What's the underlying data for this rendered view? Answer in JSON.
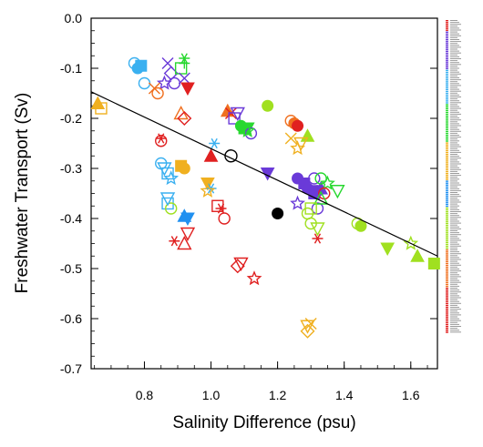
{
  "chart_data": {
    "type": "scatter",
    "xlabel": "Salinity Difference (psu)",
    "ylabel": "Freshwater Transport (Sv)",
    "xlim": [
      0.64,
      1.68
    ],
    "ylim": [
      -0.7,
      0.0
    ],
    "x_ticks": [
      "0.8",
      "1.0",
      "1.2",
      "1.4",
      "1.6"
    ],
    "y_ticks": [
      "0.0",
      "-0.1",
      "-0.2",
      "-0.3",
      "-0.4",
      "-0.5",
      "-0.6",
      "-0.7"
    ],
    "grid": false,
    "legend": "right, list of ensemble members (labels too small to read)",
    "regression_line": {
      "x": [
        0.64,
        1.68
      ],
      "y": [
        -0.147,
        -0.475
      ],
      "color": "#000000"
    },
    "highlight_points": [
      {
        "x": 1.06,
        "y": -0.275,
        "style": "open-circle"
      },
      {
        "x": 1.2,
        "y": -0.39,
        "style": "filled-circle"
      }
    ],
    "points": [
      {
        "x": 0.77,
        "y": -0.09,
        "color": "#3ab0f0",
        "marker": "circle"
      },
      {
        "x": 0.78,
        "y": -0.1,
        "color": "#3ab0f0",
        "marker": "circle-fill"
      },
      {
        "x": 0.79,
        "y": -0.095,
        "color": "#3ab0f0",
        "marker": "square-fill"
      },
      {
        "x": 0.8,
        "y": -0.13,
        "color": "#3ab0f0",
        "marker": "circle"
      },
      {
        "x": 0.87,
        "y": -0.09,
        "color": "#6a3ad8",
        "marker": "x"
      },
      {
        "x": 0.86,
        "y": -0.13,
        "color": "#6a3ad8",
        "marker": "star"
      },
      {
        "x": 0.88,
        "y": -0.11,
        "color": "#6a3ad8",
        "marker": "diamond"
      },
      {
        "x": 0.89,
        "y": -0.13,
        "color": "#6a3ad8",
        "marker": "circle"
      },
      {
        "x": 0.91,
        "y": -0.1,
        "color": "#28d830",
        "marker": "square"
      },
      {
        "x": 0.92,
        "y": -0.09,
        "color": "#28d830",
        "marker": "plus"
      },
      {
        "x": 0.92,
        "y": -0.08,
        "color": "#28d830",
        "marker": "asterisk"
      },
      {
        "x": 0.92,
        "y": -0.12,
        "color": "#6a3ad8",
        "marker": "x"
      },
      {
        "x": 0.93,
        "y": -0.14,
        "color": "#e02020",
        "marker": "triangle-down-fill"
      },
      {
        "x": 0.83,
        "y": -0.14,
        "color": "#f07020",
        "marker": "x"
      },
      {
        "x": 0.84,
        "y": -0.15,
        "color": "#f07020",
        "marker": "circle"
      },
      {
        "x": 0.66,
        "y": -0.17,
        "color": "#f0b020",
        "marker": "triangle-up-fill"
      },
      {
        "x": 0.67,
        "y": -0.18,
        "color": "#f0b020",
        "marker": "square"
      },
      {
        "x": 0.91,
        "y": -0.19,
        "color": "#f07020",
        "marker": "triangle-up"
      },
      {
        "x": 0.92,
        "y": -0.2,
        "color": "#e02020",
        "marker": "diamond"
      },
      {
        "x": 0.85,
        "y": -0.245,
        "color": "#e02020",
        "marker": "circle"
      },
      {
        "x": 0.85,
        "y": -0.24,
        "color": "#e02020",
        "marker": "asterisk"
      },
      {
        "x": 0.86,
        "y": -0.3,
        "color": "#3ab0f0",
        "marker": "triangle-down"
      },
      {
        "x": 0.85,
        "y": -0.29,
        "color": "#3ab0f0",
        "marker": "circle"
      },
      {
        "x": 0.87,
        "y": -0.31,
        "color": "#3ab0f0",
        "marker": "square"
      },
      {
        "x": 0.88,
        "y": -0.32,
        "color": "#3ab0f0",
        "marker": "star"
      },
      {
        "x": 0.91,
        "y": -0.295,
        "color": "#f0b020",
        "marker": "square-fill"
      },
      {
        "x": 0.92,
        "y": -0.3,
        "color": "#f0b020",
        "marker": "circle-fill"
      },
      {
        "x": 0.87,
        "y": -0.37,
        "color": "#3ab0f0",
        "marker": "square"
      },
      {
        "x": 0.88,
        "y": -0.38,
        "color": "#a0e020",
        "marker": "circle"
      },
      {
        "x": 0.87,
        "y": -0.36,
        "color": "#3ab0f0",
        "marker": "triangle-down"
      },
      {
        "x": 0.93,
        "y": -0.4,
        "color": "#2090f0",
        "marker": "triangle-down-fill"
      },
      {
        "x": 0.92,
        "y": -0.395,
        "color": "#2090f0",
        "marker": "triangle-up-fill"
      },
      {
        "x": 0.89,
        "y": -0.445,
        "color": "#e02020",
        "marker": "asterisk"
      },
      {
        "x": 0.92,
        "y": -0.45,
        "color": "#e02020",
        "marker": "triangle-up"
      },
      {
        "x": 0.93,
        "y": -0.43,
        "color": "#e02020",
        "marker": "triangle-down"
      },
      {
        "x": 0.99,
        "y": -0.33,
        "color": "#f0b020",
        "marker": "triangle-down-fill"
      },
      {
        "x": 1.0,
        "y": -0.34,
        "color": "#3ab0f0",
        "marker": "asterisk"
      },
      {
        "x": 0.99,
        "y": -0.345,
        "color": "#f0b020",
        "marker": "star"
      },
      {
        "x": 1.01,
        "y": -0.25,
        "color": "#3ab0f0",
        "marker": "asterisk"
      },
      {
        "x": 1.0,
        "y": -0.275,
        "color": "#e02020",
        "marker": "triangle-up-fill"
      },
      {
        "x": 1.05,
        "y": -0.185,
        "color": "#f07020",
        "marker": "triangle-up-fill"
      },
      {
        "x": 1.06,
        "y": -0.19,
        "color": "#e02020",
        "marker": "x"
      },
      {
        "x": 1.07,
        "y": -0.2,
        "color": "#6a3ad8",
        "marker": "square"
      },
      {
        "x": 1.08,
        "y": -0.19,
        "color": "#6a3ad8",
        "marker": "triangle-down"
      },
      {
        "x": 1.09,
        "y": -0.215,
        "color": "#28d830",
        "marker": "circle-fill"
      },
      {
        "x": 1.1,
        "y": -0.22,
        "color": "#28d830",
        "marker": "square-fill"
      },
      {
        "x": 1.11,
        "y": -0.22,
        "color": "#28d830",
        "marker": "triangle-down-fill"
      },
      {
        "x": 1.12,
        "y": -0.23,
        "color": "#6a3ad8",
        "marker": "circle"
      },
      {
        "x": 1.11,
        "y": -0.225,
        "color": "#28d830",
        "marker": "star"
      },
      {
        "x": 1.17,
        "y": -0.175,
        "color": "#a0e020",
        "marker": "circle-fill"
      },
      {
        "x": 1.02,
        "y": -0.375,
        "color": "#e02020",
        "marker": "square"
      },
      {
        "x": 1.04,
        "y": -0.4,
        "color": "#e02020",
        "marker": "circle"
      },
      {
        "x": 1.03,
        "y": -0.38,
        "color": "#e02020",
        "marker": "asterisk"
      },
      {
        "x": 1.08,
        "y": -0.495,
        "color": "#e02020",
        "marker": "diamond"
      },
      {
        "x": 1.09,
        "y": -0.49,
        "color": "#e02020",
        "marker": "triangle-down"
      },
      {
        "x": 1.13,
        "y": -0.52,
        "color": "#e02020",
        "marker": "star"
      },
      {
        "x": 1.24,
        "y": -0.205,
        "color": "#f07020",
        "marker": "circle"
      },
      {
        "x": 1.25,
        "y": -0.21,
        "color": "#f07020",
        "marker": "circle-fill"
      },
      {
        "x": 1.26,
        "y": -0.215,
        "color": "#e02020",
        "marker": "circle-fill"
      },
      {
        "x": 1.29,
        "y": -0.235,
        "color": "#a0e020",
        "marker": "triangle-up-fill"
      },
      {
        "x": 1.26,
        "y": -0.26,
        "color": "#f0b020",
        "marker": "star"
      },
      {
        "x": 1.27,
        "y": -0.25,
        "color": "#f0b020",
        "marker": "triangle-down"
      },
      {
        "x": 1.24,
        "y": -0.24,
        "color": "#f0b020",
        "marker": "x"
      },
      {
        "x": 1.17,
        "y": -0.31,
        "color": "#6a3ad8",
        "marker": "triangle-down-fill"
      },
      {
        "x": 1.26,
        "y": -0.32,
        "color": "#6a3ad8",
        "marker": "circle-fill"
      },
      {
        "x": 1.28,
        "y": -0.33,
        "color": "#6a3ad8",
        "marker": "square-fill"
      },
      {
        "x": 1.29,
        "y": -0.34,
        "color": "#6a3ad8",
        "marker": "circle-fill"
      },
      {
        "x": 1.3,
        "y": -0.345,
        "color": "#6a3ad8",
        "marker": "triangle-down-fill"
      },
      {
        "x": 1.31,
        "y": -0.35,
        "color": "#6a3ad8",
        "marker": "square-fill"
      },
      {
        "x": 1.32,
        "y": -0.345,
        "color": "#6a3ad8",
        "marker": "circle-fill"
      },
      {
        "x": 1.33,
        "y": -0.34,
        "color": "#6a3ad8",
        "marker": "triangle-up-fill"
      },
      {
        "x": 1.31,
        "y": -0.32,
        "color": "#6a3ad8",
        "marker": "circle"
      },
      {
        "x": 1.32,
        "y": -0.38,
        "color": "#6a3ad8",
        "marker": "circle"
      },
      {
        "x": 1.26,
        "y": -0.37,
        "color": "#6a3ad8",
        "marker": "star"
      },
      {
        "x": 1.33,
        "y": -0.32,
        "color": "#28d830",
        "marker": "circle"
      },
      {
        "x": 1.35,
        "y": -0.33,
        "color": "#28d830",
        "marker": "star"
      },
      {
        "x": 1.38,
        "y": -0.345,
        "color": "#28d830",
        "marker": "triangle-down"
      },
      {
        "x": 1.34,
        "y": -0.35,
        "color": "#e02020",
        "marker": "circle"
      },
      {
        "x": 1.33,
        "y": -0.36,
        "color": "#28d830",
        "marker": "triangle-up"
      },
      {
        "x": 1.3,
        "y": -0.38,
        "color": "#a0e020",
        "marker": "square"
      },
      {
        "x": 1.29,
        "y": -0.39,
        "color": "#a0e020",
        "marker": "circle"
      },
      {
        "x": 1.3,
        "y": -0.41,
        "color": "#a0e020",
        "marker": "circle"
      },
      {
        "x": 1.32,
        "y": -0.42,
        "color": "#a0e020",
        "marker": "triangle-down"
      },
      {
        "x": 1.32,
        "y": -0.44,
        "color": "#e02020",
        "marker": "asterisk"
      },
      {
        "x": 1.44,
        "y": -0.41,
        "color": "#a0e020",
        "marker": "circle"
      },
      {
        "x": 1.45,
        "y": -0.415,
        "color": "#a0e020",
        "marker": "circle-fill"
      },
      {
        "x": 1.53,
        "y": -0.46,
        "color": "#a0e020",
        "marker": "triangle-down-fill"
      },
      {
        "x": 1.6,
        "y": -0.45,
        "color": "#a0e020",
        "marker": "star"
      },
      {
        "x": 1.62,
        "y": -0.475,
        "color": "#a0e020",
        "marker": "triangle-up-fill"
      },
      {
        "x": 1.67,
        "y": -0.49,
        "color": "#a0e020",
        "marker": "square-fill"
      },
      {
        "x": 1.29,
        "y": -0.615,
        "color": "#f0b020",
        "marker": "triangle-down"
      },
      {
        "x": 1.29,
        "y": -0.625,
        "color": "#f0b020",
        "marker": "diamond"
      },
      {
        "x": 1.3,
        "y": -0.61,
        "color": "#f0b020",
        "marker": "x"
      }
    ]
  }
}
